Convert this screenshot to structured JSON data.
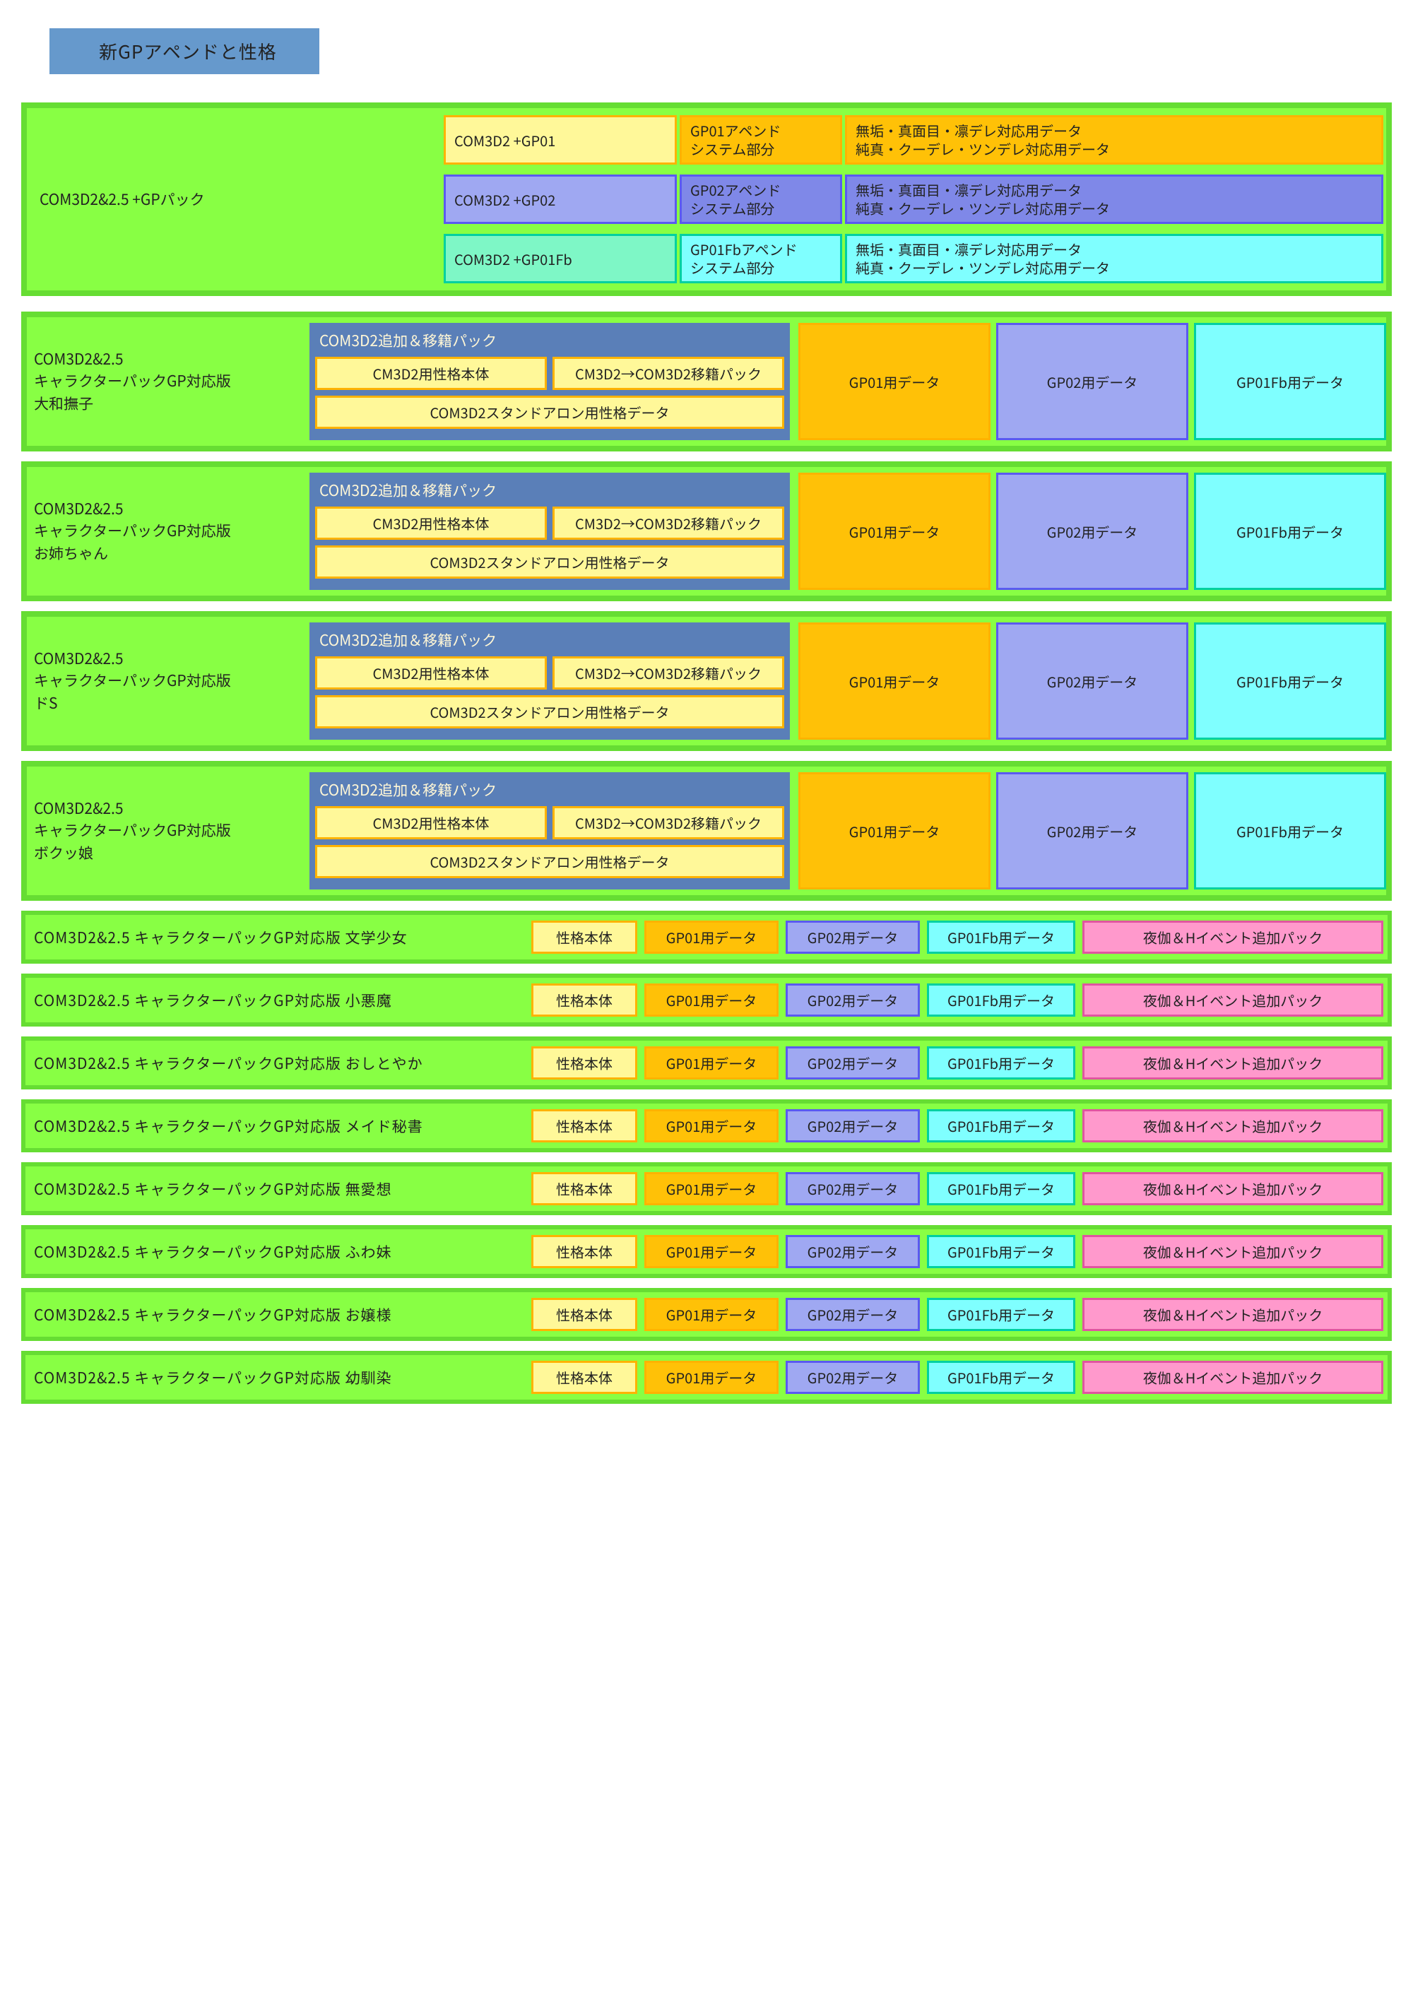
{
  "title": "新GPアペンドと性格",
  "colors": {
    "outer_border": "#66dd33",
    "inner_lime": "#88ff44",
    "title_band": "#6699cc",
    "yellow_fill": "#fff899",
    "orange_fill": "#ffc107",
    "orange_border": "#ffb300",
    "violet_fill": "#9fa8f2",
    "violet_dark": "#7f88e8",
    "violet_border": "#5a5af0",
    "cyan_fill": "#7fffff",
    "mint_fill": "#7ef7c6",
    "cyan_border": "#00d0a0",
    "pink_fill": "#ff99cc",
    "pink_border": "#e055a0",
    "blue_panel": "#5a7fb8"
  },
  "gp_pack": {
    "label": "COM3D2&2.5 +GPパック",
    "rows": [
      {
        "name": "COM3D2 +GP01",
        "sys_l1": "GP01アペンド",
        "sys_l2": "システム部分",
        "traits_l1": "無垢・真面目・凛デレ対応用データ",
        "traits_l2": "純真・クーデレ・ツンデレ対応用データ"
      },
      {
        "name": "COM3D2 +GP02",
        "sys_l1": "GP02アペンド",
        "sys_l2": "システム部分",
        "traits_l1": "無垢・真面目・凛デレ対応用データ",
        "traits_l2": "純真・クーデレ・ツンデレ対応用データ"
      },
      {
        "name": "COM3D2 +GP01Fb",
        "sys_l1": "GP01Fbアペンド",
        "sys_l2": "システム部分",
        "traits_l1": "無垢・真面目・凛デレ対応用データ",
        "traits_l2": "純真・クーデレ・ツンデレ対応用データ"
      }
    ]
  },
  "mid_common": {
    "l1": "COM3D2&2.5",
    "l2": "キャラクターパックGP対応版",
    "center_title": "COM3D2追加＆移籍パック",
    "center_r1a": "CM3D2用性格本体",
    "center_r1b": "CM3D2→COM3D2移籍パック",
    "center_r2": "COM3D2スタンドアロン用性格データ",
    "slot_gp01": "GP01用データ",
    "slot_gp02": "GP02用データ",
    "slot_gp01fb": "GP01Fb用データ"
  },
  "mid": [
    {
      "name": "大和撫子"
    },
    {
      "name": "お姉ちゃん"
    },
    {
      "name": "ドS"
    },
    {
      "name": "ボクッ娘"
    }
  ],
  "bot_common": {
    "prefix": "COM3D2&2.5 キャラクターパックGP対応版 ",
    "seikaku": "性格本体",
    "gp01": "GP01用データ",
    "gp02": "GP02用データ",
    "gp01fb": "GP01Fb用データ",
    "extra": "夜伽＆Hイベント追加パック"
  },
  "bot": [
    {
      "name": "文学少女"
    },
    {
      "name": "小悪魔"
    },
    {
      "name": "おしとやか"
    },
    {
      "name": "メイド秘書"
    },
    {
      "name": "無愛想"
    },
    {
      "name": "ふわ妹"
    },
    {
      "name": "お嬢様"
    },
    {
      "name": "幼馴染"
    }
  ]
}
